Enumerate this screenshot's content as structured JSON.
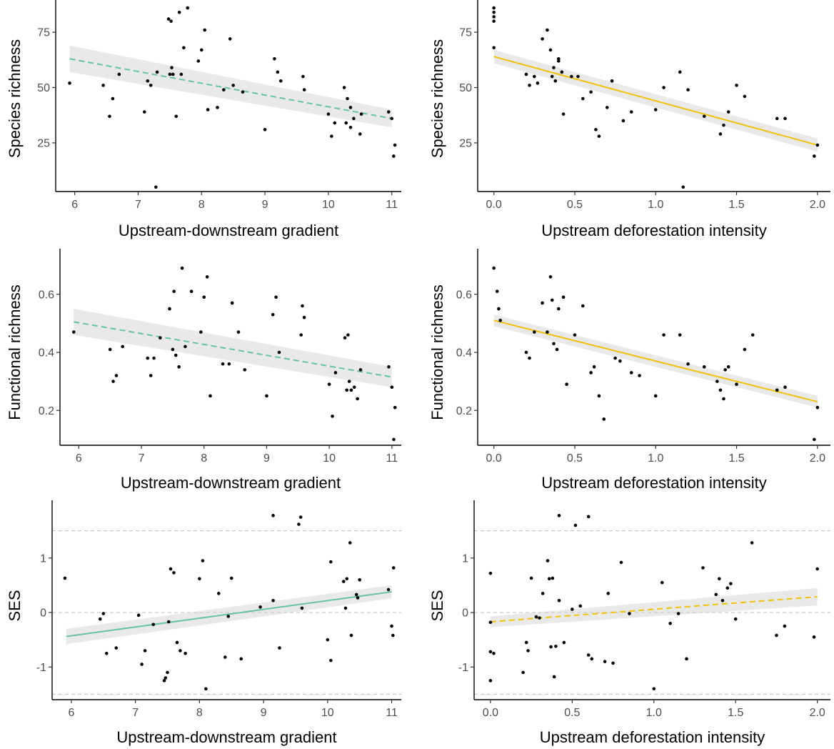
{
  "chart_data": [
    {
      "type": "scatter",
      "xlabel": "Upstream-downstream gradient",
      "ylabel": "Species richness",
      "xlim": [
        5.7,
        11.15
      ],
      "ylim": [
        3,
        87
      ],
      "xticks": [
        6,
        7,
        8,
        9,
        10,
        11
      ],
      "yticks": [
        25,
        50,
        75
      ],
      "ytick_labels": [
        "25",
        "50",
        "75"
      ],
      "hlines": [],
      "points": [
        [
          5.92,
          52
        ],
        [
          6.45,
          51
        ],
        [
          6.55,
          37
        ],
        [
          6.6,
          45
        ],
        [
          6.7,
          56
        ],
        [
          7.1,
          39
        ],
        [
          7.15,
          53
        ],
        [
          7.2,
          51
        ],
        [
          7.28,
          5
        ],
        [
          7.3,
          57
        ],
        [
          7.48,
          81
        ],
        [
          7.52,
          80
        ],
        [
          7.5,
          56
        ],
        [
          7.53,
          59
        ],
        [
          7.6,
          37
        ],
        [
          7.65,
          84
        ],
        [
          7.72,
          68
        ],
        [
          7.78,
          86
        ],
        [
          7.55,
          56
        ],
        [
          7.68,
          56
        ],
        [
          7.95,
          62
        ],
        [
          8.0,
          67
        ],
        [
          8.05,
          76
        ],
        [
          8.1,
          40
        ],
        [
          8.25,
          41
        ],
        [
          8.35,
          49
        ],
        [
          8.45,
          72
        ],
        [
          8.5,
          51
        ],
        [
          8.65,
          48
        ],
        [
          9.0,
          31
        ],
        [
          9.15,
          63
        ],
        [
          9.2,
          57
        ],
        [
          9.25,
          53
        ],
        [
          9.6,
          55
        ],
        [
          9.62,
          49
        ],
        [
          10.0,
          38
        ],
        [
          10.05,
          28
        ],
        [
          10.1,
          34
        ],
        [
          10.25,
          50
        ],
        [
          10.28,
          34
        ],
        [
          10.3,
          45
        ],
        [
          10.35,
          41
        ],
        [
          10.35,
          32
        ],
        [
          10.4,
          36
        ],
        [
          10.5,
          29
        ],
        [
          10.52,
          38
        ],
        [
          10.95,
          39
        ],
        [
          11.0,
          36
        ],
        [
          11.05,
          24
        ],
        [
          11.03,
          19
        ]
      ],
      "fit": {
        "x": [
          5.92,
          11.0
        ],
        "y": [
          63,
          36
        ],
        "ci_lo": [
          57,
          32
        ],
        "ci_hi": [
          69,
          40
        ],
        "color": "#66c2a5",
        "dashed": true
      }
    },
    {
      "type": "scatter",
      "xlabel": "Upstream deforestation intensity",
      "ylabel": "Species richness",
      "xlim": [
        -0.1,
        2.08
      ],
      "ylim": [
        3,
        87
      ],
      "xticks": [
        0,
        0.5,
        1,
        1.5,
        2
      ],
      "xtick_labels": [
        "0.0",
        "0.5",
        "1.0",
        "1.5",
        "2.0"
      ],
      "yticks": [
        25,
        50,
        75
      ],
      "ytick_labels": [
        "25",
        "50",
        "75"
      ],
      "hlines": [],
      "points": [
        [
          0,
          86
        ],
        [
          0,
          84
        ],
        [
          0,
          82
        ],
        [
          0,
          80
        ],
        [
          0,
          68
        ],
        [
          0.2,
          56
        ],
        [
          0.22,
          51
        ],
        [
          0.25,
          55
        ],
        [
          0.27,
          52
        ],
        [
          0.3,
          72
        ],
        [
          0.33,
          76
        ],
        [
          0.35,
          67
        ],
        [
          0.36,
          55
        ],
        [
          0.37,
          59
        ],
        [
          0.38,
          53
        ],
        [
          0.4,
          62
        ],
        [
          0.42,
          57
        ],
        [
          0.4,
          63
        ],
        [
          0.43,
          38
        ],
        [
          0.48,
          55
        ],
        [
          0.52,
          55
        ],
        [
          0.55,
          45
        ],
        [
          0.6,
          48
        ],
        [
          0.63,
          31
        ],
        [
          0.65,
          28
        ],
        [
          0.7,
          41
        ],
        [
          0.73,
          53
        ],
        [
          0.8,
          35
        ],
        [
          0.85,
          39
        ],
        [
          1.0,
          40
        ],
        [
          1.05,
          50
        ],
        [
          1.15,
          57
        ],
        [
          1.2,
          49
        ],
        [
          1.17,
          5
        ],
        [
          1.3,
          37
        ],
        [
          1.4,
          29
        ],
        [
          1.45,
          39
        ],
        [
          1.5,
          51
        ],
        [
          1.55,
          46
        ],
        [
          1.75,
          36
        ],
        [
          1.8,
          36
        ],
        [
          1.98,
          19
        ],
        [
          2.0,
          24
        ],
        [
          1.42,
          33
        ]
      ],
      "fit": {
        "x": [
          0,
          2.0
        ],
        "y": [
          64,
          24
        ],
        "ci_lo": [
          61,
          21
        ],
        "ci_hi": [
          67,
          27
        ],
        "color": "#f0c20f",
        "dashed": false
      }
    },
    {
      "type": "scatter",
      "xlabel": "Upstream-downstream gradient",
      "ylabel": "Functional richness",
      "xlim": [
        5.7,
        11.15
      ],
      "ylim": [
        0.08,
        0.72
      ],
      "xticks": [
        6,
        7,
        8,
        9,
        10,
        11
      ],
      "yticks": [
        0.2,
        0.4,
        0.6
      ],
      "ytick_labels": [
        "0.2",
        "0.4",
        "0.6"
      ],
      "hlines": [],
      "points": [
        [
          5.92,
          0.47
        ],
        [
          6.5,
          0.41
        ],
        [
          6.55,
          0.3
        ],
        [
          6.6,
          0.32
        ],
        [
          6.7,
          0.42
        ],
        [
          7.1,
          0.38
        ],
        [
          7.15,
          0.32
        ],
        [
          7.2,
          0.38
        ],
        [
          7.3,
          0.45
        ],
        [
          7.45,
          0.55
        ],
        [
          7.5,
          0.41
        ],
        [
          7.52,
          0.61
        ],
        [
          7.55,
          0.39
        ],
        [
          7.6,
          0.35
        ],
        [
          7.65,
          0.69
        ],
        [
          7.7,
          0.42
        ],
        [
          7.8,
          0.61
        ],
        [
          7.95,
          0.47
        ],
        [
          8.0,
          0.59
        ],
        [
          8.05,
          0.66
        ],
        [
          8.1,
          0.25
        ],
        [
          8.3,
          0.36
        ],
        [
          8.4,
          0.36
        ],
        [
          8.45,
          0.57
        ],
        [
          8.55,
          0.47
        ],
        [
          8.65,
          0.34
        ],
        [
          9.0,
          0.25
        ],
        [
          9.1,
          0.53
        ],
        [
          9.15,
          0.59
        ],
        [
          9.2,
          0.4
        ],
        [
          9.55,
          0.46
        ],
        [
          9.57,
          0.56
        ],
        [
          9.6,
          0.52
        ],
        [
          10.0,
          0.29
        ],
        [
          10.05,
          0.18
        ],
        [
          10.1,
          0.33
        ],
        [
          10.25,
          0.45
        ],
        [
          10.28,
          0.27
        ],
        [
          10.3,
          0.46
        ],
        [
          10.32,
          0.3
        ],
        [
          10.35,
          0.27
        ],
        [
          10.4,
          0.28
        ],
        [
          10.45,
          0.24
        ],
        [
          10.5,
          0.34
        ],
        [
          10.95,
          0.35
        ],
        [
          11.0,
          0.28
        ],
        [
          11.05,
          0.21
        ],
        [
          11.03,
          0.1
        ]
      ],
      "fit": {
        "x": [
          5.92,
          11.0
        ],
        "y": [
          0.505,
          0.315
        ],
        "ci_lo": [
          0.46,
          0.28
        ],
        "ci_hi": [
          0.55,
          0.35
        ],
        "color": "#66c2a5",
        "dashed": true
      }
    },
    {
      "type": "scatter",
      "xlabel": "Upstream deforestation intensity",
      "ylabel": "Functional richness",
      "xlim": [
        -0.1,
        2.08
      ],
      "ylim": [
        0.08,
        0.72
      ],
      "xticks": [
        0,
        0.5,
        1,
        1.5,
        2
      ],
      "xtick_labels": [
        "0.0",
        "0.5",
        "1.0",
        "1.5",
        "2.0"
      ],
      "yticks": [
        0.2,
        0.4,
        0.6
      ],
      "ytick_labels": [
        "0.2",
        "0.4",
        "0.6"
      ],
      "hlines": [],
      "points": [
        [
          0,
          0.69
        ],
        [
          0.02,
          0.61
        ],
        [
          0.03,
          0.55
        ],
        [
          0.04,
          0.51
        ],
        [
          0.2,
          0.4
        ],
        [
          0.22,
          0.38
        ],
        [
          0.25,
          0.47
        ],
        [
          0.3,
          0.57
        ],
        [
          0.33,
          0.47
        ],
        [
          0.35,
          0.66
        ],
        [
          0.36,
          0.58
        ],
        [
          0.37,
          0.43
        ],
        [
          0.39,
          0.41
        ],
        [
          0.4,
          0.55
        ],
        [
          0.43,
          0.59
        ],
        [
          0.45,
          0.29
        ],
        [
          0.5,
          0.46
        ],
        [
          0.55,
          0.56
        ],
        [
          0.6,
          0.33
        ],
        [
          0.62,
          0.35
        ],
        [
          0.65,
          0.25
        ],
        [
          0.68,
          0.17
        ],
        [
          0.75,
          0.38
        ],
        [
          0.78,
          0.37
        ],
        [
          0.85,
          0.33
        ],
        [
          0.9,
          0.32
        ],
        [
          1.0,
          0.25
        ],
        [
          1.05,
          0.46
        ],
        [
          1.15,
          0.46
        ],
        [
          1.2,
          0.36
        ],
        [
          1.3,
          0.35
        ],
        [
          1.38,
          0.3
        ],
        [
          1.4,
          0.27
        ],
        [
          1.42,
          0.24
        ],
        [
          1.45,
          0.35
        ],
        [
          1.5,
          0.29
        ],
        [
          1.55,
          0.41
        ],
        [
          1.6,
          0.46
        ],
        [
          1.75,
          0.27
        ],
        [
          1.8,
          0.28
        ],
        [
          1.98,
          0.1
        ],
        [
          2.0,
          0.21
        ],
        [
          1.43,
          0.34
        ]
      ],
      "fit": {
        "x": [
          0,
          2.0
        ],
        "y": [
          0.51,
          0.23
        ],
        "ci_lo": [
          0.49,
          0.21
        ],
        "ci_hi": [
          0.53,
          0.25
        ],
        "color": "#f0c20f",
        "dashed": false
      }
    },
    {
      "type": "scatter",
      "xlabel": "Upstream-downstream gradient",
      "ylabel": "SES",
      "xlim": [
        5.7,
        11.15
      ],
      "ylim": [
        -1.6,
        1.85
      ],
      "xticks": [
        6,
        7,
        8,
        9,
        10,
        11
      ],
      "yticks": [
        -1,
        0,
        1
      ],
      "ytick_labels": [
        "-1",
        "0",
        "1"
      ],
      "hlines": [
        1.5,
        0,
        -1.5
      ],
      "points": [
        [
          5.9,
          0.63
        ],
        [
          6.45,
          -0.12
        ],
        [
          6.5,
          -0.02
        ],
        [
          6.55,
          -0.75
        ],
        [
          6.7,
          -0.65
        ],
        [
          7.05,
          -0.05
        ],
        [
          7.1,
          -0.95
        ],
        [
          7.15,
          -0.7
        ],
        [
          7.28,
          -0.22
        ],
        [
          7.45,
          -1.25
        ],
        [
          7.47,
          -1.2
        ],
        [
          7.5,
          -1.1
        ],
        [
          7.52,
          -0.17
        ],
        [
          7.55,
          0.8
        ],
        [
          7.6,
          0.73
        ],
        [
          7.65,
          -0.55
        ],
        [
          7.7,
          -0.7
        ],
        [
          7.78,
          -0.75
        ],
        [
          8.0,
          0.62
        ],
        [
          8.05,
          0.95
        ],
        [
          8.1,
          -1.4
        ],
        [
          8.3,
          0.35
        ],
        [
          8.4,
          -0.82
        ],
        [
          8.45,
          -0.07
        ],
        [
          8.5,
          0.63
        ],
        [
          8.65,
          -0.85
        ],
        [
          8.95,
          0.1
        ],
        [
          9.15,
          1.78
        ],
        [
          9.15,
          0.22
        ],
        [
          9.25,
          -0.65
        ],
        [
          9.55,
          1.62
        ],
        [
          9.58,
          1.75
        ],
        [
          9.6,
          0.08
        ],
        [
          10.0,
          -0.5
        ],
        [
          10.05,
          -0.88
        ],
        [
          10.05,
          0.93
        ],
        [
          10.25,
          0.57
        ],
        [
          10.28,
          0.08
        ],
        [
          10.3,
          0.62
        ],
        [
          10.35,
          1.28
        ],
        [
          10.37,
          -0.42
        ],
        [
          10.45,
          0.33
        ],
        [
          10.47,
          0.27
        ],
        [
          10.5,
          0.6
        ],
        [
          10.95,
          0.42
        ],
        [
          11.0,
          -0.25
        ],
        [
          11.02,
          -0.42
        ],
        [
          11.03,
          0.82
        ]
      ],
      "fit": {
        "x": [
          5.92,
          11.0
        ],
        "y": [
          -0.44,
          0.38
        ],
        "ci_lo": [
          -0.58,
          0.26
        ],
        "ci_hi": [
          -0.3,
          0.5
        ],
        "color": "#66c2a5",
        "dashed": false
      }
    },
    {
      "type": "scatter",
      "xlabel": "Upstream deforestation intensity",
      "ylabel": "SES",
      "xlim": [
        -0.1,
        2.08
      ],
      "ylim": [
        -1.6,
        1.85
      ],
      "xticks": [
        0,
        0.5,
        1,
        1.5,
        2
      ],
      "xtick_labels": [
        "0.0",
        "0.5",
        "1.0",
        "1.5",
        "2.0"
      ],
      "yticks": [
        -1,
        0,
        1
      ],
      "ytick_labels": [
        "-1",
        "0",
        "1"
      ],
      "hlines": [
        1.5,
        0,
        -1.5
      ],
      "points": [
        [
          0,
          0.72
        ],
        [
          0,
          -0.18
        ],
        [
          0,
          -0.72
        ],
        [
          0.02,
          -0.75
        ],
        [
          0,
          -1.25
        ],
        [
          0.2,
          -1.1
        ],
        [
          0.22,
          -0.55
        ],
        [
          0.23,
          -0.7
        ],
        [
          0.25,
          0.63
        ],
        [
          0.28,
          -0.08
        ],
        [
          0.3,
          -0.1
        ],
        [
          0.32,
          0.35
        ],
        [
          0.35,
          0.95
        ],
        [
          0.36,
          0.62
        ],
        [
          0.37,
          -0.63
        ],
        [
          0.38,
          0.63
        ],
        [
          0.39,
          -1.18
        ],
        [
          0.4,
          -0.62
        ],
        [
          0.42,
          0.22
        ],
        [
          0.45,
          -0.55
        ],
        [
          0.42,
          1.78
        ],
        [
          0.5,
          0.06
        ],
        [
          0.52,
          1.6
        ],
        [
          0.55,
          0.12
        ],
        [
          0.6,
          1.76
        ],
        [
          0.6,
          -0.78
        ],
        [
          0.62,
          -0.85
        ],
        [
          0.7,
          -0.9
        ],
        [
          0.72,
          0.35
        ],
        [
          0.75,
          -0.93
        ],
        [
          0.8,
          0.92
        ],
        [
          0.85,
          -0.02
        ],
        [
          1.0,
          -1.4
        ],
        [
          1.05,
          0.55
        ],
        [
          1.1,
          -0.2
        ],
        [
          1.15,
          -0.02
        ],
        [
          1.2,
          -0.85
        ],
        [
          1.3,
          0.82
        ],
        [
          1.38,
          0.33
        ],
        [
          1.4,
          0.62
        ],
        [
          1.42,
          0.22
        ],
        [
          1.45,
          0.45
        ],
        [
          1.47,
          0.53
        ],
        [
          1.5,
          -0.12
        ],
        [
          1.6,
          1.28
        ],
        [
          1.75,
          -0.42
        ],
        [
          1.8,
          -0.25
        ],
        [
          1.98,
          -0.45
        ],
        [
          2.0,
          0.8
        ]
      ],
      "fit": {
        "x": [
          0,
          2.0
        ],
        "y": [
          -0.17,
          0.29
        ],
        "ci_lo": [
          -0.27,
          0.13
        ],
        "ci_hi": [
          -0.07,
          0.45
        ],
        "color": "#f0c20f",
        "dashed": true
      }
    }
  ]
}
